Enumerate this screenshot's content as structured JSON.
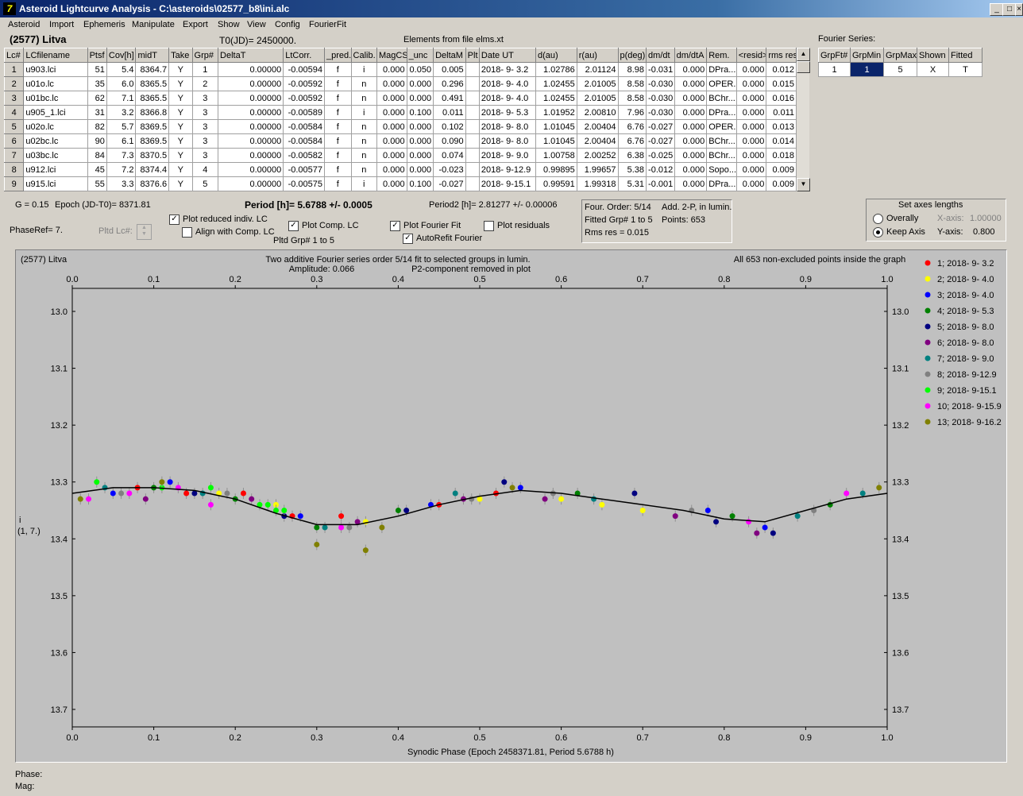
{
  "window": {
    "title": "Asteroid Lightcurve Analysis - C:\\asteroids\\02577_b8\\ini.alc",
    "app_icon": "7"
  },
  "menu": [
    "Asteroid",
    "Import",
    "Ephemeris",
    "Manipulate",
    "Export",
    "Show",
    "View",
    "Config",
    "FourierFit"
  ],
  "header": {
    "asteroid": "(2577) Litva",
    "t0": "T0(JD)= 2450000.",
    "elements": "Elements from file elms.xt"
  },
  "lc_table": {
    "columns": [
      "Lc#",
      "LCfilename",
      "Ptsf",
      "Cov[h]",
      "midT",
      "Take",
      "Grp#",
      "DeltaT",
      "LtCorr.",
      "_pred.",
      "Calib.",
      "MagCS",
      "_unc",
      "DeltaM",
      "Plt",
      "Date UT",
      "d(au)",
      "r(au)",
      "p(deg)",
      "dm/dt",
      "dm/dtA",
      "Rem.",
      "<resid>",
      "rms res"
    ],
    "rows": [
      [
        "1",
        "u903.lci",
        "51",
        "5.4",
        "8364.7",
        "Y",
        "1",
        "0.00000",
        "-0.00594",
        "f",
        "i",
        "0.000",
        "0.050",
        "0.005",
        "",
        "2018- 9- 3.2",
        "1.02786",
        "2.01124",
        "8.98",
        "-0.031",
        "0.000",
        "DPra...",
        "0.000",
        "0.012"
      ],
      [
        "2",
        "u01o.lc",
        "35",
        "6.0",
        "8365.5",
        "Y",
        "2",
        "0.00000",
        "-0.00592",
        "f",
        "n",
        "0.000",
        "0.000",
        "0.296",
        "",
        "2018- 9- 4.0",
        "1.02455",
        "2.01005",
        "8.58",
        "-0.030",
        "0.000",
        "OPER.",
        "0.000",
        "0.015"
      ],
      [
        "3",
        "u01bc.lc",
        "62",
        "7.1",
        "8365.5",
        "Y",
        "3",
        "0.00000",
        "-0.00592",
        "f",
        "n",
        "0.000",
        "0.000",
        "0.491",
        "",
        "2018- 9- 4.0",
        "1.02455",
        "2.01005",
        "8.58",
        "-0.030",
        "0.000",
        "BChr...",
        "0.000",
        "0.016"
      ],
      [
        "4",
        "u905_1.lci",
        "31",
        "3.2",
        "8366.8",
        "Y",
        "3",
        "0.00000",
        "-0.00589",
        "f",
        "i",
        "0.000",
        "0.100",
        "0.011",
        "",
        "2018- 9- 5.3",
        "1.01952",
        "2.00810",
        "7.96",
        "-0.030",
        "0.000",
        "DPra...",
        "0.000",
        "0.011"
      ],
      [
        "5",
        "u02o.lc",
        "82",
        "5.7",
        "8369.5",
        "Y",
        "3",
        "0.00000",
        "-0.00584",
        "f",
        "n",
        "0.000",
        "0.000",
        "0.102",
        "",
        "2018- 9- 8.0",
        "1.01045",
        "2.00404",
        "6.76",
        "-0.027",
        "0.000",
        "OPER.",
        "0.000",
        "0.013"
      ],
      [
        "6",
        "u02bc.lc",
        "90",
        "6.1",
        "8369.5",
        "Y",
        "3",
        "0.00000",
        "-0.00584",
        "f",
        "n",
        "0.000",
        "0.000",
        "0.090",
        "",
        "2018- 9- 8.0",
        "1.01045",
        "2.00404",
        "6.76",
        "-0.027",
        "0.000",
        "BChr...",
        "0.000",
        "0.014"
      ],
      [
        "7",
        "u03bc.lc",
        "84",
        "7.3",
        "8370.5",
        "Y",
        "3",
        "0.00000",
        "-0.00582",
        "f",
        "n",
        "0.000",
        "0.000",
        "0.074",
        "",
        "2018- 9- 9.0",
        "1.00758",
        "2.00252",
        "6.38",
        "-0.025",
        "0.000",
        "BChr...",
        "0.000",
        "0.018"
      ],
      [
        "8",
        "u912.lci",
        "45",
        "7.2",
        "8374.4",
        "Y",
        "4",
        "0.00000",
        "-0.00577",
        "f",
        "n",
        "0.000",
        "0.000",
        "-0.023",
        "",
        "2018- 9-12.9",
        "0.99895",
        "1.99657",
        "5.38",
        "-0.012",
        "0.000",
        "Sopo...",
        "0.000",
        "0.009"
      ],
      [
        "9",
        "u915.lci",
        "55",
        "3.3",
        "8376.6",
        "Y",
        "5",
        "0.00000",
        "-0.00575",
        "f",
        "i",
        "0.000",
        "0.100",
        "-0.027",
        "",
        "2018- 9-15.1",
        "0.99591",
        "1.99318",
        "5.31",
        "-0.001",
        "0.000",
        "DPra...",
        "0.000",
        "0.009"
      ]
    ]
  },
  "fourier_series": {
    "label": "Fourier Series:",
    "columns": [
      "GrpFt#",
      "GrpMin",
      "GrpMax",
      "Shown",
      "Fitted"
    ],
    "row": [
      "1",
      "1",
      "5",
      "X",
      "T"
    ]
  },
  "params": {
    "g": "G = 0.15",
    "epoch": "Epoch (JD-T0)= 8371.81",
    "phase_ref": "PhaseRef= 7.",
    "pltd_lc": "Pltd Lc#:",
    "period": "Period [h]= 5.6788 +/- 0.0005",
    "period2": "Period2 [h]= 2.81277 +/- 0.00006",
    "pltd_grp": "Pltd Grp#  1   to   5"
  },
  "checkboxes": {
    "plot_reduced": {
      "label": "Plot reduced indiv. LC",
      "checked": true
    },
    "align_comp": {
      "label": "Align with Comp. LC",
      "checked": false
    },
    "plot_comp": {
      "label": "Plot Comp. LC",
      "checked": true
    },
    "plot_fourier": {
      "label": "Plot Fourier Fit",
      "checked": true
    },
    "autorefit": {
      "label": "AutoRefit Fourier",
      "checked": true
    },
    "plot_residuals": {
      "label": "Plot residuals",
      "checked": false
    }
  },
  "fit_info": {
    "order": "Four. Order:  5/14",
    "add": "Add. 2-P, in lumin.",
    "fitted": "Fitted Grp# 1 to 5",
    "points": "Points: 653",
    "rms": "Rms res      = 0.015"
  },
  "axes_box": {
    "title": "Set axes lengths",
    "overally": "Overally",
    "keep_axis": "Keep Axis",
    "x_label": "X-axis:",
    "x_value": "1.00000",
    "y_label": "Y-axis:",
    "y_value": "0.800",
    "selected": "keep_axis"
  },
  "status": {
    "phase": "Phase:",
    "mag": "Mag:"
  },
  "chart_data": {
    "type": "scatter",
    "title_left": "(2577) Litva",
    "title_center_1": "Two additive Fourier series order 5/14 fit to selected groups in lumin.",
    "title_center_2": "Amplitude: 0.066",
    "title_center_3": "P2-component removed in plot",
    "title_right": "All 653 non-excluded points inside the graph",
    "xlabel": "Synodic Phase (Epoch 2458371.81, Period 5.6788 h)",
    "ylabel": "i",
    "ylabel2": "(1, 7.)",
    "xlim": [
      0.0,
      1.0
    ],
    "ylim": [
      13.7,
      13.0
    ],
    "x_ticks": [
      "0.0",
      "0.1",
      "0.2",
      "0.3",
      "0.4",
      "0.5",
      "0.6",
      "0.7",
      "0.8",
      "0.9",
      "1.0"
    ],
    "y_ticks": [
      "13.0",
      "13.1",
      "13.2",
      "13.3",
      "13.4",
      "13.5",
      "13.6",
      "13.7"
    ],
    "y_tick_values": [
      13.0,
      13.1,
      13.2,
      13.3,
      13.4,
      13.5,
      13.6,
      13.7
    ],
    "fit_curve": {
      "x": [
        0.0,
        0.05,
        0.1,
        0.15,
        0.2,
        0.25,
        0.3,
        0.35,
        0.4,
        0.45,
        0.5,
        0.55,
        0.6,
        0.65,
        0.7,
        0.75,
        0.8,
        0.85,
        0.9,
        0.95,
        1.0
      ],
      "y": [
        13.32,
        13.31,
        13.31,
        13.315,
        13.33,
        13.355,
        13.375,
        13.375,
        13.36,
        13.34,
        13.325,
        13.315,
        13.32,
        13.33,
        13.34,
        13.35,
        13.365,
        13.37,
        13.35,
        13.33,
        13.32
      ]
    },
    "series": [
      {
        "name": "1; 2018- 9- 3.2",
        "color": "#ff0000",
        "x": [
          0.08,
          0.14,
          0.21,
          0.27,
          0.33,
          0.45,
          0.52
        ],
        "y": [
          13.31,
          13.32,
          13.32,
          13.36,
          13.36,
          13.34,
          13.32
        ]
      },
      {
        "name": "2; 2018- 9- 4.0",
        "color": "#ffff00",
        "x": [
          0.18,
          0.25,
          0.36,
          0.5,
          0.6,
          0.65,
          0.7
        ],
        "y": [
          13.32,
          13.34,
          13.37,
          13.33,
          13.33,
          13.34,
          13.35
        ]
      },
      {
        "name": "3; 2018- 9- 4.0",
        "color": "#0000ff",
        "x": [
          0.05,
          0.12,
          0.28,
          0.44,
          0.55,
          0.78,
          0.85
        ],
        "y": [
          13.32,
          13.3,
          13.36,
          13.34,
          13.31,
          13.35,
          13.38
        ]
      },
      {
        "name": "4; 2018- 9- 5.3",
        "color": "#008000",
        "x": [
          0.1,
          0.2,
          0.3,
          0.4,
          0.62,
          0.81,
          0.93
        ],
        "y": [
          13.31,
          13.33,
          13.38,
          13.35,
          13.32,
          13.36,
          13.34
        ]
      },
      {
        "name": "5; 2018- 9- 8.0",
        "color": "#000080",
        "x": [
          0.15,
          0.26,
          0.41,
          0.53,
          0.69,
          0.79,
          0.86
        ],
        "y": [
          13.32,
          13.36,
          13.35,
          13.3,
          13.32,
          13.37,
          13.39
        ]
      },
      {
        "name": "6; 2018- 9- 8.0",
        "color": "#800080",
        "x": [
          0.09,
          0.22,
          0.35,
          0.48,
          0.58,
          0.74,
          0.84
        ],
        "y": [
          13.33,
          13.33,
          13.37,
          13.33,
          13.33,
          13.36,
          13.39
        ]
      },
      {
        "name": "7; 2018- 9- 9.0",
        "color": "#008080",
        "x": [
          0.04,
          0.16,
          0.31,
          0.47,
          0.64,
          0.89,
          0.97
        ],
        "y": [
          13.31,
          13.32,
          13.38,
          13.32,
          13.33,
          13.36,
          13.32
        ]
      },
      {
        "name": "8; 2018- 9-12.9",
        "color": "#808080",
        "x": [
          0.06,
          0.19,
          0.34,
          0.49,
          0.59,
          0.76,
          0.91
        ],
        "y": [
          13.32,
          13.32,
          13.38,
          13.33,
          13.32,
          13.35,
          13.35
        ]
      },
      {
        "name": "9; 2018- 9-15.1",
        "color": "#00ff00",
        "x": [
          0.03,
          0.11,
          0.23,
          0.24,
          0.25,
          0.26,
          0.17
        ],
        "y": [
          13.3,
          13.31,
          13.34,
          13.34,
          13.35,
          13.35,
          13.31
        ]
      },
      {
        "name": "10; 2018- 9-15.9",
        "color": "#ff00ff",
        "x": [
          0.02,
          0.07,
          0.13,
          0.17,
          0.33,
          0.83,
          0.95
        ],
        "y": [
          13.33,
          13.32,
          13.31,
          13.34,
          13.38,
          13.37,
          13.32
        ]
      },
      {
        "name": "13; 2018- 9-16.2",
        "color": "#808000",
        "x": [
          0.01,
          0.11,
          0.3,
          0.36,
          0.38,
          0.54,
          0.99
        ],
        "y": [
          13.33,
          13.3,
          13.41,
          13.42,
          13.38,
          13.31,
          13.31
        ]
      }
    ]
  }
}
